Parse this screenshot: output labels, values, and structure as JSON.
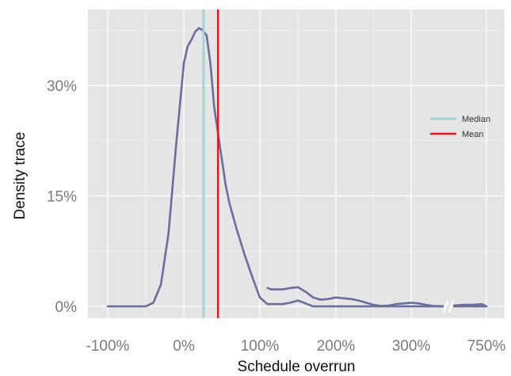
{
  "chart_data": {
    "type": "line",
    "xlabel": "Schedule overrun",
    "ylabel": "Density trace",
    "xlim": [
      -100,
      750
    ],
    "ylim": [
      0,
      40
    ],
    "x_ticks": [
      {
        "value": -100,
        "label": "-100%"
      },
      {
        "value": 0,
        "label": "0%"
      },
      {
        "value": 100,
        "label": "100%"
      },
      {
        "value": 200,
        "label": "200%"
      },
      {
        "value": 300,
        "label": "300%"
      },
      {
        "value": 750,
        "label": "750%"
      }
    ],
    "y_ticks": [
      {
        "value": 0,
        "label": "0%"
      },
      {
        "value": 15,
        "label": "15%"
      },
      {
        "value": 30,
        "label": "30%"
      }
    ],
    "axis_break": {
      "position": 350,
      "symbol": "//"
    },
    "grid": true,
    "legend_position": "right",
    "series": [
      {
        "color": "#6b6d9e",
        "x": [
          -100,
          -50,
          -40,
          -30,
          -20,
          -10,
          0,
          5,
          10,
          15,
          20,
          25,
          30,
          35,
          40,
          45,
          50,
          55,
          60,
          70,
          80,
          90,
          100,
          110,
          115,
          130,
          140,
          150,
          160,
          170,
          180,
          190,
          200,
          210,
          220,
          230,
          240,
          250,
          260,
          270,
          280,
          300,
          310,
          320,
          330,
          340,
          350,
          400,
          500,
          600,
          700,
          720,
          735,
          750
        ],
        "y": [
          0,
          0,
          0.5,
          3,
          10,
          22,
          33,
          35.3,
          36.2,
          37.3,
          37.8,
          37.5,
          36.8,
          33,
          27,
          23.5,
          20,
          16.5,
          14,
          10.3,
          7,
          4,
          1.2,
          0.3,
          0.3,
          0.3,
          0.5,
          0.8,
          0.4,
          0,
          0,
          0,
          0,
          0,
          0,
          0,
          0,
          0,
          0,
          0,
          0,
          0,
          0,
          0,
          0,
          0,
          0,
          0,
          0,
          0,
          0,
          0,
          0,
          0
        ]
      },
      {
        "color": "#6b6d9e",
        "x": [
          110,
          115,
          130,
          140,
          150,
          160,
          170,
          180,
          190,
          200,
          210,
          220,
          230,
          240,
          250,
          260,
          270,
          280,
          300,
          310,
          320,
          330,
          340,
          350,
          400,
          500,
          600,
          700,
          720,
          735,
          750
        ],
        "y": [
          2.5,
          2.3,
          2.3,
          2.5,
          2.6,
          2.0,
          1.2,
          0.9,
          1.0,
          1.2,
          1.1,
          1.0,
          0.8,
          0.5,
          0.2,
          0.05,
          0.1,
          0.3,
          0.5,
          0.4,
          0.2,
          0.05,
          0.02,
          0,
          0.1,
          0.2,
          0.2,
          0.3,
          0.2,
          0.1,
          0
        ]
      }
    ],
    "reference_lines": [
      {
        "name": "Median",
        "x": 26,
        "color": "#9fd4d4"
      },
      {
        "name": "Mean",
        "x": 45,
        "color": "#e8141b"
      }
    ]
  }
}
